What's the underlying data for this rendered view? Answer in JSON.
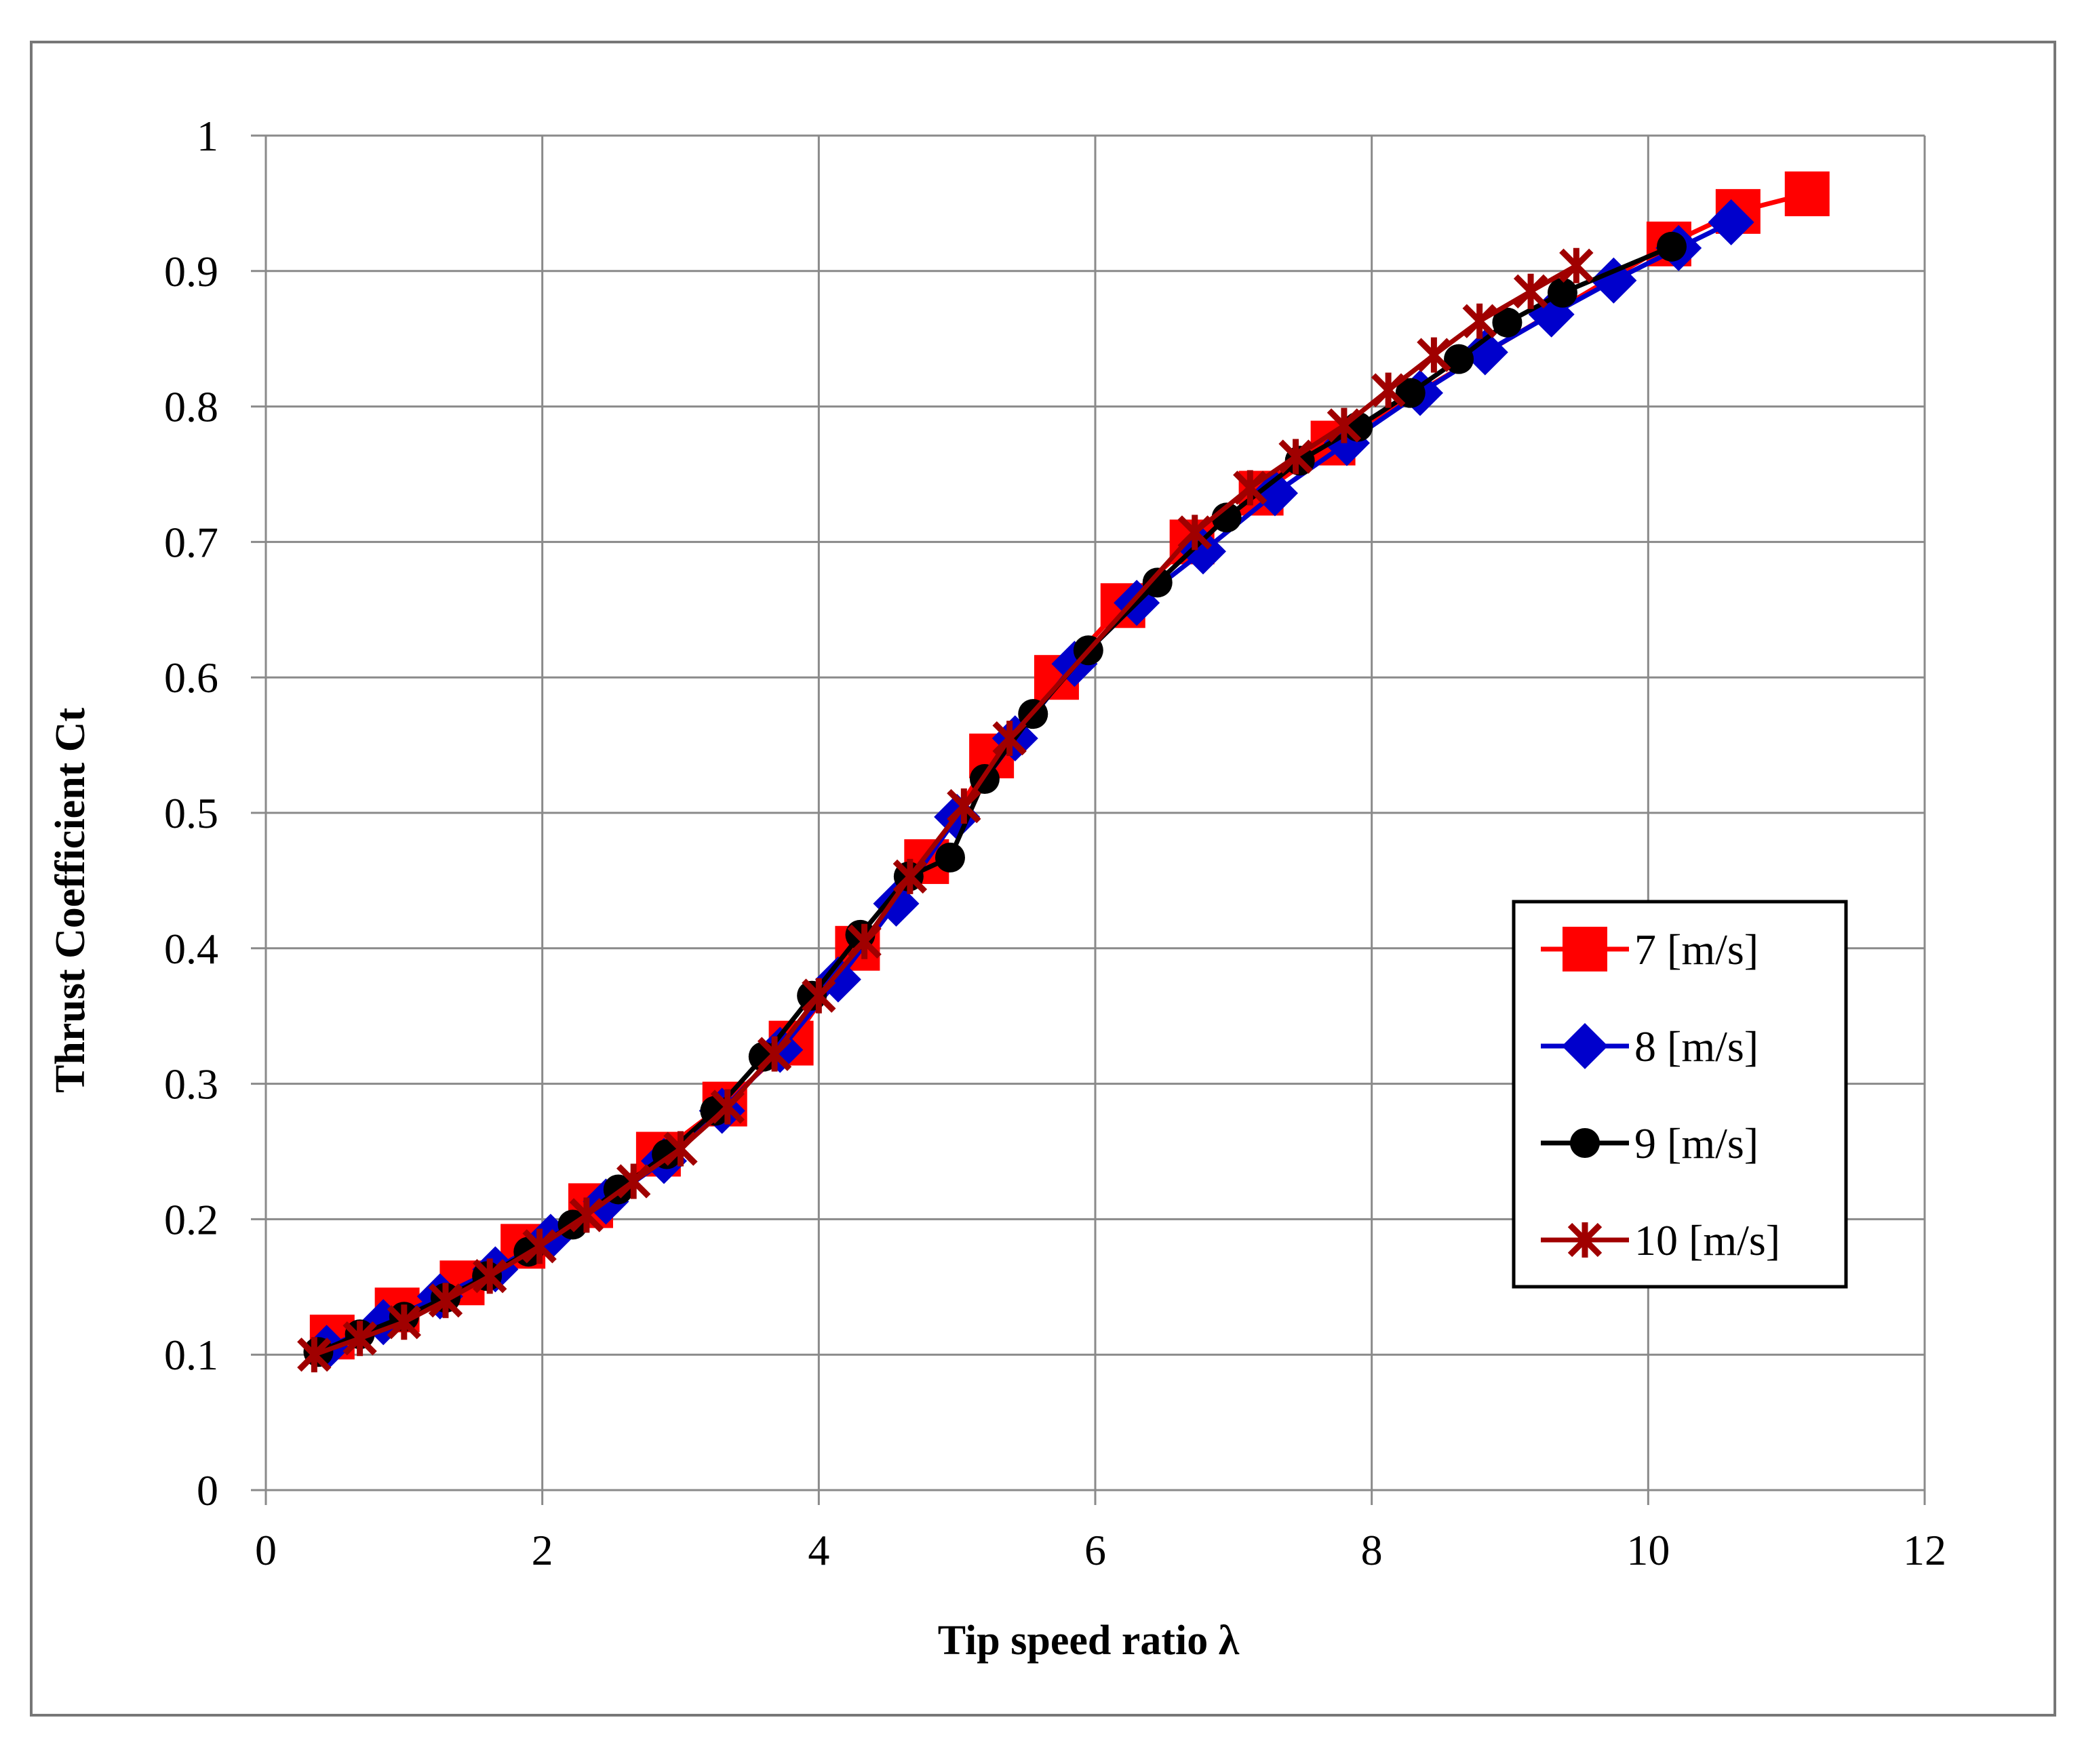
{
  "chart_data": {
    "type": "line",
    "title": "",
    "xlabel": "Tip speed ratio λ",
    "ylabel": "Thrust Coefficient Ct",
    "xlim": [
      0,
      12
    ],
    "ylim": [
      0,
      1
    ],
    "xticks": [
      0,
      2,
      4,
      6,
      8,
      10,
      12
    ],
    "xtick_labels": [
      "0",
      "2",
      "4",
      "6",
      "8",
      "10",
      "12"
    ],
    "yticks": [
      0,
      0.1,
      0.2,
      0.3,
      0.4,
      0.5,
      0.6,
      0.7,
      0.8,
      0.9,
      1
    ],
    "ytick_labels": [
      "0",
      "0.1",
      "0.2",
      "0.3",
      "0.4",
      "0.5",
      "0.6",
      "0.7",
      "0.8",
      "0.9",
      "1"
    ],
    "grid": true,
    "legend_position": "right-middle",
    "series": [
      {
        "name": "7 [m/s]",
        "color": "#ff0000",
        "marker": "square",
        "points": [
          [
            0.48,
            0.113
          ],
          [
            0.95,
            0.133
          ],
          [
            1.42,
            0.153
          ],
          [
            1.86,
            0.18
          ],
          [
            2.35,
            0.21
          ],
          [
            2.84,
            0.248
          ],
          [
            3.32,
            0.285
          ],
          [
            3.8,
            0.33
          ],
          [
            4.28,
            0.4
          ],
          [
            4.78,
            0.464
          ],
          [
            5.25,
            0.542
          ],
          [
            5.72,
            0.6
          ],
          [
            6.2,
            0.653
          ],
          [
            6.7,
            0.7
          ],
          [
            7.2,
            0.736
          ],
          [
            7.72,
            0.773
          ],
          [
            10.15,
            0.92
          ],
          [
            10.65,
            0.944
          ],
          [
            11.15,
            0.957
          ]
        ]
      },
      {
        "name": "8 [m/s]",
        "color": "#0000cc",
        "marker": "diamond",
        "points": [
          [
            0.44,
            0.105
          ],
          [
            0.85,
            0.124
          ],
          [
            1.26,
            0.143
          ],
          [
            1.66,
            0.163
          ],
          [
            2.06,
            0.187
          ],
          [
            2.46,
            0.213
          ],
          [
            2.88,
            0.243
          ],
          [
            3.3,
            0.28
          ],
          [
            3.72,
            0.325
          ],
          [
            4.14,
            0.377
          ],
          [
            4.56,
            0.433
          ],
          [
            5.0,
            0.497
          ],
          [
            5.42,
            0.555
          ],
          [
            5.85,
            0.61
          ],
          [
            6.3,
            0.655
          ],
          [
            6.78,
            0.693
          ],
          [
            7.3,
            0.736
          ],
          [
            7.82,
            0.773
          ],
          [
            8.35,
            0.81
          ],
          [
            8.82,
            0.84
          ],
          [
            9.3,
            0.868
          ],
          [
            9.75,
            0.893
          ],
          [
            10.22,
            0.917
          ],
          [
            10.6,
            0.936
          ]
        ]
      },
      {
        "name": "9 [m/s]",
        "color": "#000000",
        "marker": "circle",
        "points": [
          [
            0.38,
            0.102
          ],
          [
            0.68,
            0.115
          ],
          [
            1.0,
            0.128
          ],
          [
            1.3,
            0.142
          ],
          [
            1.6,
            0.158
          ],
          [
            1.9,
            0.176
          ],
          [
            2.22,
            0.196
          ],
          [
            2.55,
            0.222
          ],
          [
            2.9,
            0.248
          ],
          [
            3.25,
            0.28
          ],
          [
            3.6,
            0.32
          ],
          [
            3.95,
            0.365
          ],
          [
            4.3,
            0.41
          ],
          [
            4.65,
            0.453
          ],
          [
            4.95,
            0.467
          ],
          [
            5.2,
            0.525
          ],
          [
            5.55,
            0.573
          ],
          [
            5.95,
            0.62
          ],
          [
            6.45,
            0.67
          ],
          [
            6.95,
            0.718
          ],
          [
            7.48,
            0.76
          ],
          [
            7.9,
            0.785
          ],
          [
            8.28,
            0.81
          ],
          [
            8.63,
            0.835
          ],
          [
            8.98,
            0.862
          ],
          [
            9.38,
            0.884
          ],
          [
            10.17,
            0.918
          ]
        ]
      },
      {
        "name": "10 [m/s]",
        "color": "#a00000",
        "marker": "star",
        "points": [
          [
            0.35,
            0.1
          ],
          [
            0.68,
            0.112
          ],
          [
            1.0,
            0.124
          ],
          [
            1.3,
            0.14
          ],
          [
            1.62,
            0.158
          ],
          [
            1.98,
            0.18
          ],
          [
            2.32,
            0.203
          ],
          [
            2.66,
            0.228
          ],
          [
            3.0,
            0.252
          ],
          [
            3.34,
            0.283
          ],
          [
            3.68,
            0.322
          ],
          [
            4.0,
            0.365
          ],
          [
            4.33,
            0.405
          ],
          [
            4.66,
            0.453
          ],
          [
            5.05,
            0.505
          ],
          [
            5.38,
            0.555
          ],
          [
            6.72,
            0.707
          ],
          [
            7.12,
            0.74
          ],
          [
            7.45,
            0.763
          ],
          [
            7.8,
            0.786
          ],
          [
            8.12,
            0.812
          ],
          [
            8.45,
            0.838
          ],
          [
            8.78,
            0.863
          ],
          [
            9.15,
            0.885
          ],
          [
            9.48,
            0.904
          ]
        ]
      }
    ]
  }
}
